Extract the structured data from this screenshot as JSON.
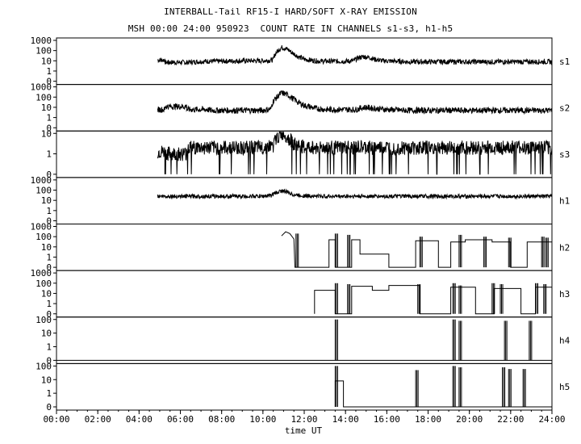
{
  "header": {
    "title": "INTERBALL-Tail RF15-I HARD/SOFT X-RAY EMISSION",
    "subtitle": "MSH 00:00 24:00 950923  COUNT RATE IN CHANNELS s1-s3, h1-h5"
  },
  "chart_data": {
    "type": "line",
    "x_unit": "hours UT",
    "xlim": [
      0,
      24
    ],
    "xlabel": "time UT",
    "x_ticks": [
      "00:00",
      "02:00",
      "04:00",
      "06:00",
      "08:00",
      "10:00",
      "12:00",
      "14:00",
      "16:00",
      "18:00",
      "20:00",
      "22:00",
      "24:00"
    ],
    "scale": "log",
    "line_color": "#000000",
    "panels": [
      {
        "name": "s1",
        "ticks": [
          "1000",
          "100",
          "10",
          "1",
          "0"
        ],
        "series": [
          [
            4.9,
            12
          ],
          [
            5.25,
            12
          ],
          [
            5.25,
            7
          ],
          [
            6.3,
            7
          ],
          [
            6.3,
            7
          ],
          [
            7.25,
            9
          ],
          [
            7.5,
            9
          ],
          [
            8,
            9
          ],
          [
            9,
            10
          ],
          [
            10,
            10
          ],
          [
            10.5,
            12
          ],
          [
            10.7,
            80
          ],
          [
            10.9,
            200
          ],
          [
            11.1,
            160
          ],
          [
            11.4,
            60
          ],
          [
            11.7,
            25
          ],
          [
            12,
            14
          ],
          [
            12.5,
            10
          ],
          [
            13,
            9
          ],
          [
            13.5,
            9
          ],
          [
            14,
            9
          ],
          [
            14.4,
            10
          ],
          [
            14.7,
            22
          ],
          [
            14.9,
            25
          ],
          [
            15.1,
            22
          ],
          [
            15.4,
            14
          ],
          [
            15.8,
            10
          ],
          [
            16.5,
            9
          ],
          [
            17,
            8
          ],
          [
            18,
            8
          ],
          [
            19,
            8
          ],
          [
            20,
            8
          ],
          [
            21,
            8
          ],
          [
            22,
            8
          ],
          [
            23,
            8
          ],
          [
            24,
            8
          ]
        ],
        "noise": 0.25,
        "dropouts": 0
      },
      {
        "name": "s2",
        "ticks": [
          "1000",
          "100",
          "10",
          "1",
          "0"
        ],
        "series": [
          [
            4.9,
            6
          ],
          [
            5.25,
            6
          ],
          [
            5.25,
            12
          ],
          [
            6.3,
            12
          ],
          [
            6.3,
            6
          ],
          [
            7.25,
            6
          ],
          [
            7.5,
            5
          ],
          [
            8,
            5
          ],
          [
            9,
            5
          ],
          [
            10,
            5
          ],
          [
            10.4,
            7
          ],
          [
            10.7,
            100
          ],
          [
            10.9,
            250
          ],
          [
            11.1,
            200
          ],
          [
            11.4,
            80
          ],
          [
            11.7,
            30
          ],
          [
            12,
            15
          ],
          [
            12.5,
            8
          ],
          [
            13,
            6
          ],
          [
            14,
            6
          ],
          [
            14.5,
            6
          ],
          [
            14.8,
            9
          ],
          [
            15,
            10
          ],
          [
            15.3,
            8
          ],
          [
            16,
            6
          ],
          [
            17,
            5
          ],
          [
            18,
            5
          ],
          [
            19,
            5
          ],
          [
            20,
            5
          ],
          [
            21,
            5
          ],
          [
            22,
            5
          ],
          [
            23,
            5
          ],
          [
            24,
            5
          ]
        ],
        "noise": 0.3,
        "dropouts": 0
      },
      {
        "name": "s3",
        "ticks": [
          "10",
          "1",
          "0"
        ],
        "series": [
          [
            4.9,
            1.2
          ],
          [
            5.25,
            1.2
          ],
          [
            5.25,
            1
          ],
          [
            6.3,
            1
          ],
          [
            6.3,
            2
          ],
          [
            7.25,
            2
          ],
          [
            7.5,
            2
          ],
          [
            8,
            2
          ],
          [
            9,
            2
          ],
          [
            10,
            2
          ],
          [
            10.5,
            2.5
          ],
          [
            10.8,
            8
          ],
          [
            11,
            10
          ],
          [
            11.2,
            6
          ],
          [
            11.5,
            3
          ],
          [
            12,
            2
          ],
          [
            13,
            2
          ],
          [
            14,
            2
          ],
          [
            15,
            2
          ],
          [
            16,
            2
          ],
          [
            17,
            2
          ],
          [
            18,
            2
          ],
          [
            19,
            2
          ],
          [
            20,
            2
          ],
          [
            21,
            2
          ],
          [
            22,
            2
          ],
          [
            23,
            2
          ],
          [
            24,
            2
          ]
        ],
        "noise": 0.35,
        "dropouts": 0.35
      },
      {
        "name": "h1",
        "ticks": [
          "1000",
          "100",
          "10",
          "1",
          "0"
        ],
        "series": [
          [
            4.9,
            25
          ],
          [
            5.25,
            25
          ],
          [
            5.25,
            25
          ],
          [
            6.3,
            25
          ],
          [
            6.3,
            25
          ],
          [
            7.25,
            25
          ],
          [
            7.5,
            25
          ],
          [
            8,
            25
          ],
          [
            9,
            25
          ],
          [
            10,
            25
          ],
          [
            10.4,
            30
          ],
          [
            10.7,
            60
          ],
          [
            10.95,
            90
          ],
          [
            11.2,
            60
          ],
          [
            11.5,
            35
          ],
          [
            12,
            28
          ],
          [
            13,
            25
          ],
          [
            14,
            25
          ],
          [
            15,
            25
          ],
          [
            16,
            25
          ],
          [
            17,
            25
          ],
          [
            18,
            25
          ],
          [
            19,
            25
          ],
          [
            20,
            25
          ],
          [
            21,
            25
          ],
          [
            22,
            25
          ],
          [
            23,
            25
          ],
          [
            24,
            25
          ]
        ],
        "noise": 0.2,
        "dropouts": 0
      },
      {
        "name": "h2",
        "ticks": [
          "1000",
          "100",
          "10",
          "1",
          "0"
        ],
        "series": [
          [
            10.9,
            120
          ],
          [
            11.1,
            300
          ],
          [
            11.3,
            200
          ],
          [
            11.5,
            60
          ],
          [
            11.55,
            0
          ],
          [
            13.2,
            0
          ],
          [
            13.2,
            50
          ],
          [
            13.5,
            50
          ],
          [
            13.5,
            0
          ],
          [
            14.3,
            0
          ],
          [
            14.3,
            50
          ],
          [
            14.7,
            50
          ],
          [
            14.7,
            2
          ],
          [
            16.1,
            2
          ],
          [
            16.1,
            0
          ],
          [
            17.4,
            0
          ],
          [
            17.4,
            40
          ],
          [
            18.5,
            40
          ],
          [
            18.5,
            0
          ],
          [
            19.1,
            0
          ],
          [
            19.1,
            30
          ],
          [
            19.8,
            30
          ],
          [
            19.8,
            50
          ],
          [
            21.1,
            50
          ],
          [
            21.1,
            30
          ],
          [
            22,
            30
          ],
          [
            22,
            0
          ],
          [
            22.8,
            0
          ],
          [
            22.8,
            30
          ],
          [
            24,
            30
          ]
        ],
        "noise": 0,
        "dropouts": 0
      },
      {
        "name": "h3",
        "ticks": [
          "1000",
          "100",
          "10",
          "1",
          "0"
        ],
        "series": [
          [
            12.5,
            0
          ],
          [
            12.5,
            20
          ],
          [
            13.5,
            20
          ],
          [
            13.5,
            0
          ],
          [
            14.3,
            0
          ],
          [
            14.3,
            50
          ],
          [
            15.3,
            50
          ],
          [
            15.3,
            20
          ],
          [
            16.1,
            20
          ],
          [
            16.1,
            60
          ],
          [
            17.6,
            60
          ],
          [
            17.6,
            0
          ],
          [
            19.1,
            0
          ],
          [
            19.1,
            40
          ],
          [
            20.3,
            40
          ],
          [
            20.3,
            0
          ],
          [
            21.2,
            0
          ],
          [
            21.2,
            30
          ],
          [
            22.5,
            30
          ],
          [
            22.5,
            0
          ],
          [
            23.2,
            0
          ],
          [
            23.2,
            40
          ],
          [
            24,
            40
          ]
        ],
        "noise": 0,
        "dropouts": 0
      },
      {
        "name": "h4",
        "ticks": [
          "100",
          "10",
          "1",
          "0"
        ],
        "series": [
          [
            0,
            0
          ],
          [
            24,
            0
          ]
        ],
        "noise": 0,
        "dropouts": 0
      },
      {
        "name": "h5",
        "ticks": [
          "100",
          "10",
          "1",
          "0"
        ],
        "series": [
          [
            13.5,
            0
          ],
          [
            13.5,
            8
          ],
          [
            13.9,
            8
          ],
          [
            13.9,
            0
          ],
          [
            24,
            0
          ]
        ],
        "noise": 0,
        "dropouts": 0
      }
    ],
    "spikes": {
      "h2": [
        [
          11.6,
          200
        ],
        [
          13.5,
          200
        ],
        [
          14.1,
          150
        ],
        [
          17.6,
          100
        ],
        [
          19.5,
          150
        ],
        [
          20.7,
          100
        ],
        [
          21.9,
          80
        ],
        [
          23.5,
          100
        ],
        [
          23.7,
          80
        ]
      ],
      "h3": [
        [
          13.5,
          100
        ],
        [
          14.1,
          80
        ],
        [
          17.5,
          80
        ],
        [
          19.2,
          100
        ],
        [
          19.5,
          60
        ],
        [
          21.1,
          100
        ],
        [
          21.5,
          80
        ],
        [
          23.2,
          100
        ],
        [
          23.6,
          80
        ]
      ],
      "h4": [
        [
          13.5,
          100
        ],
        [
          19.2,
          100
        ],
        [
          19.5,
          80
        ],
        [
          21.7,
          80
        ],
        [
          22.9,
          80
        ]
      ],
      "h5": [
        [
          13.5,
          100
        ],
        [
          17.4,
          50
        ],
        [
          19.2,
          100
        ],
        [
          19.5,
          80
        ],
        [
          21.6,
          80
        ],
        [
          21.9,
          60
        ],
        [
          22.6,
          60
        ]
      ]
    }
  }
}
